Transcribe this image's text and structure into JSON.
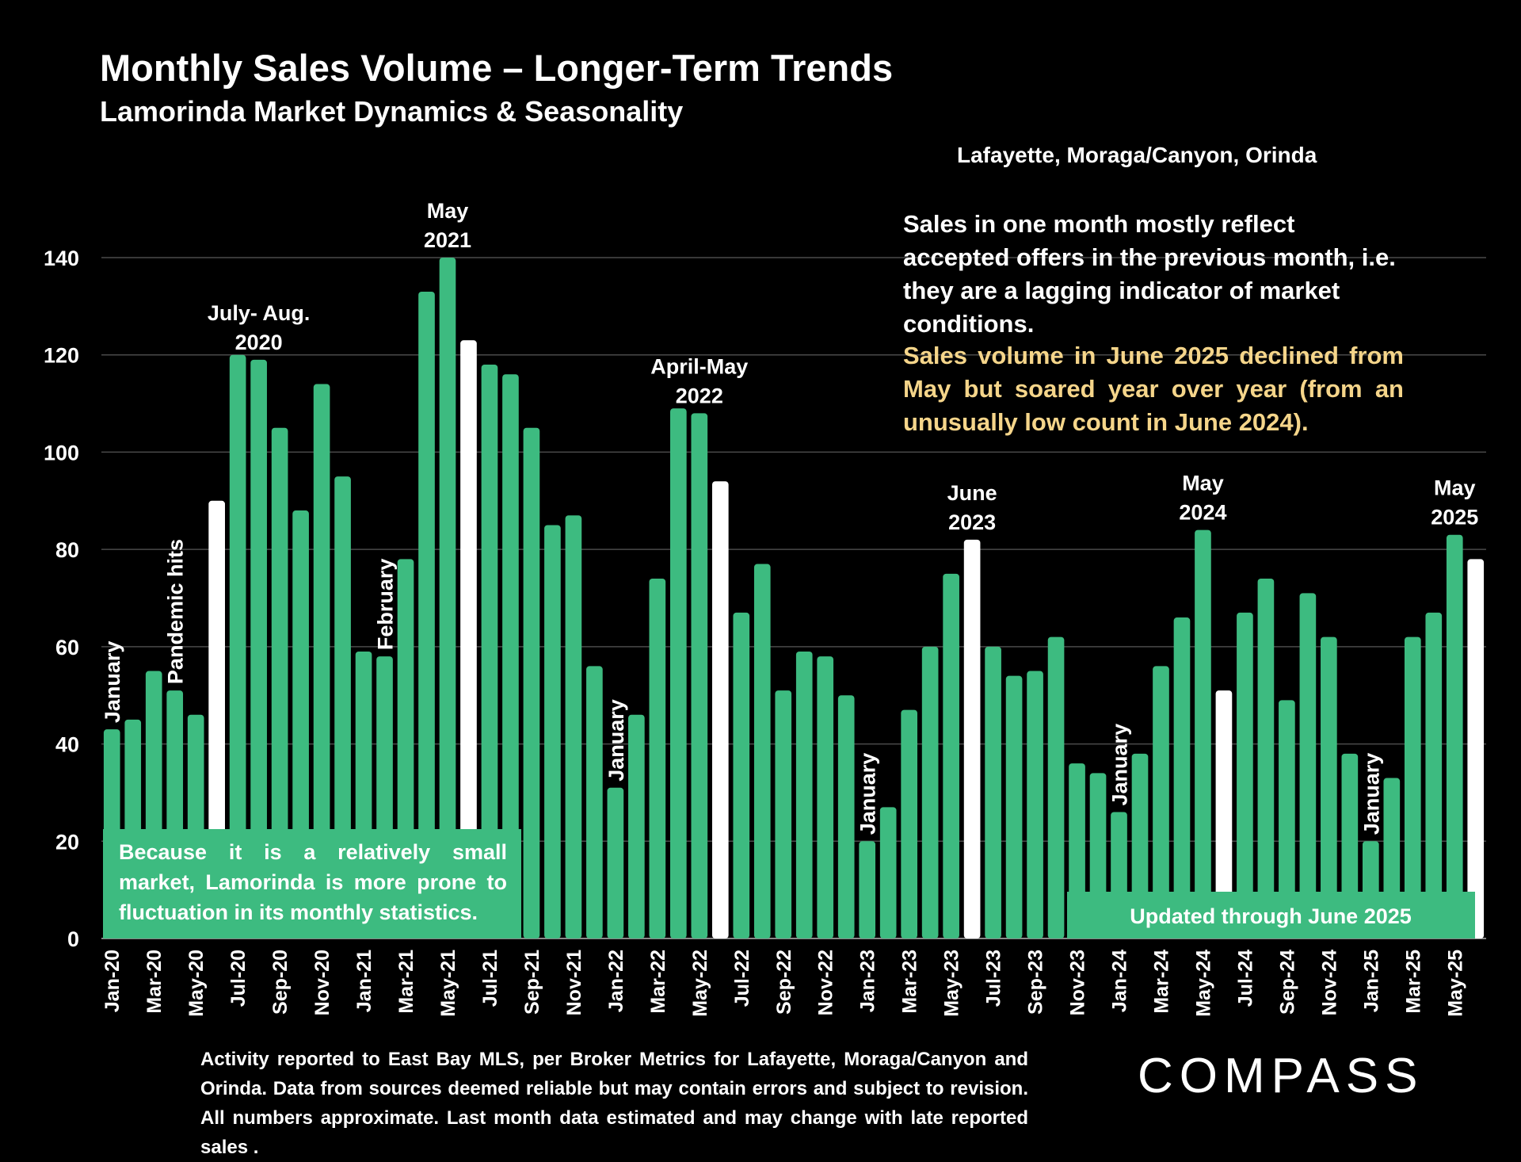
{
  "header": {
    "title": "Monthly Sales Volume – Longer-Term Trends",
    "subtitle": "Lamorinda Market Dynamics & Seasonality",
    "region": "Lafayette, Moraga/Canyon, Orinda"
  },
  "notes": {
    "lagging": "Sales in one month mostly reflect accepted offers in the previous month, i.e. they are a lagging indicator of market conditions.",
    "june2025": "Sales volume in June 2025 declined from May but soared year over year (from an unusually low count in June 2024).",
    "small_market": "Because it is a relatively small market, Lamorinda is more prone to fluctuation in its monthly statistics.",
    "updated": "Updated through June 2025"
  },
  "footer": {
    "disclaimer": "Activity reported to East Bay MLS, per Broker Metrics for Lafayette, Moraga/Canyon and Orinda. Data from sources deemed reliable but may contain errors and subject to revision. All numbers approximate. Last month data estimated and may change with late reported sales ."
  },
  "logo": {
    "text": "COMPASS"
  },
  "colors": {
    "bar": "#3dbb80",
    "highlight": "#ffffff",
    "grid": "#4a4a4a",
    "note_accent": "#f5d58a"
  },
  "chart_data": {
    "type": "bar",
    "title": "Monthly Sales Volume – Longer-Term Trends",
    "ylim": [
      0,
      140
    ],
    "yticks": [
      0,
      20,
      40,
      60,
      80,
      100,
      120,
      140
    ],
    "grid": true,
    "categories": [
      "Jan-20",
      "Feb-20",
      "Mar-20",
      "Apr-20",
      "May-20",
      "Jun-20",
      "Jul-20",
      "Aug-20",
      "Sep-20",
      "Oct-20",
      "Nov-20",
      "Dec-20",
      "Jan-21",
      "Feb-21",
      "Mar-21",
      "Apr-21",
      "May-21",
      "Jun-21",
      "Jul-21",
      "Aug-21",
      "Sep-21",
      "Oct-21",
      "Nov-21",
      "Dec-21",
      "Jan-22",
      "Feb-22",
      "Mar-22",
      "Apr-22",
      "May-22",
      "Jun-22",
      "Jul-22",
      "Aug-22",
      "Sep-22",
      "Oct-22",
      "Nov-22",
      "Dec-22",
      "Jan-23",
      "Feb-23",
      "Mar-23",
      "Apr-23",
      "May-23",
      "Jun-23",
      "Jul-23",
      "Aug-23",
      "Sep-23",
      "Oct-23",
      "Nov-23",
      "Dec-23",
      "Jan-24",
      "Feb-24",
      "Mar-24",
      "Apr-24",
      "May-24",
      "Jun-24",
      "Jul-24",
      "Aug-24",
      "Sep-24",
      "Oct-24",
      "Nov-24",
      "Dec-24",
      "Jan-25",
      "Feb-25",
      "Mar-25",
      "Apr-25",
      "May-25",
      "Jun-25"
    ],
    "x_tick_labels": [
      "Jan-20",
      "Mar-20",
      "May-20",
      "Jul-20",
      "Sep-20",
      "Nov-20",
      "Jan-21",
      "Mar-21",
      "May-21",
      "Jul-21",
      "Sep-21",
      "Nov-21",
      "Jan-22",
      "Mar-22",
      "May-22",
      "Jul-22",
      "Sep-22",
      "Nov-22",
      "Jan-23",
      "Mar-23",
      "May-23",
      "Jul-23",
      "Sep-23",
      "Nov-23",
      "Jan-24",
      "Mar-24",
      "May-24",
      "Jul-24",
      "Sep-24",
      "Nov-24",
      "Jan-25",
      "Mar-25",
      "May-25"
    ],
    "values": [
      43,
      45,
      55,
      51,
      46,
      90,
      120,
      119,
      105,
      88,
      114,
      95,
      59,
      58,
      78,
      133,
      140,
      123,
      118,
      116,
      105,
      85,
      87,
      56,
      31,
      46,
      74,
      109,
      108,
      94,
      67,
      77,
      51,
      59,
      58,
      50,
      20,
      27,
      47,
      60,
      75,
      82,
      60,
      54,
      55,
      62,
      36,
      34,
      26,
      38,
      56,
      66,
      84,
      51,
      67,
      74,
      49,
      71,
      62,
      38,
      20,
      33,
      62,
      67,
      83,
      78
    ],
    "highlighted": [
      "Jun-20",
      "Jun-21",
      "Jun-22",
      "Jun-23",
      "Jun-24",
      "Jun-25"
    ],
    "annotations": [
      {
        "text": "January",
        "at": "Jan-20",
        "orientation": "vertical"
      },
      {
        "text": "Pandemic hits",
        "at": "Apr-20",
        "orientation": "vertical"
      },
      {
        "text": "July- Aug. 2020",
        "at": "Aug-20",
        "orientation": "horizontal"
      },
      {
        "text": "February",
        "at": "Feb-21",
        "orientation": "vertical"
      },
      {
        "text": "May 2021",
        "at": "May-21",
        "orientation": "horizontal"
      },
      {
        "text": "January",
        "at": "Jan-22",
        "orientation": "vertical"
      },
      {
        "text": "April-May 2022",
        "at": "May-22",
        "orientation": "horizontal"
      },
      {
        "text": "January",
        "at": "Jan-23",
        "orientation": "vertical"
      },
      {
        "text": "June 2023",
        "at": "Jun-23",
        "orientation": "horizontal"
      },
      {
        "text": "January",
        "at": "Jan-24",
        "orientation": "vertical"
      },
      {
        "text": "May 2024",
        "at": "May-24",
        "orientation": "horizontal"
      },
      {
        "text": "January",
        "at": "Jan-25",
        "orientation": "vertical"
      },
      {
        "text": "May 2025",
        "at": "May-25",
        "orientation": "horizontal"
      }
    ]
  }
}
